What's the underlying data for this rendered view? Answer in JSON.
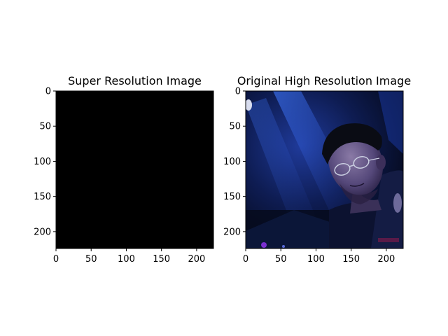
{
  "figure": {
    "background": "#ffffff"
  },
  "chart_data": [
    {
      "type": "image",
      "title": "Super Resolution Image",
      "image_description": "solid black image",
      "xticks": [
        0,
        50,
        100,
        150,
        200
      ],
      "yticks": [
        0,
        50,
        100,
        150,
        200
      ],
      "xlim": [
        0,
        224
      ],
      "ylim": [
        224,
        0
      ],
      "fill_color": "#000000",
      "grid": false
    },
    {
      "type": "image",
      "title": "Original High Resolution Image",
      "image_description": "dark blue-lit photograph of a man with glasses",
      "xticks": [
        0,
        50,
        100,
        150,
        200
      ],
      "yticks": [
        0,
        50,
        100,
        150,
        200
      ],
      "xlim": [
        0,
        224
      ],
      "ylim": [
        224,
        0
      ],
      "palette": {
        "deep": "#050a1c",
        "mid": "#12245e",
        "bright": "#3a6cf0",
        "skin": "#6c5d8a",
        "hair": "#0a0c14",
        "highlight": "#d8ddef",
        "magenta": "#7a2fd0"
      },
      "grid": false
    }
  ]
}
